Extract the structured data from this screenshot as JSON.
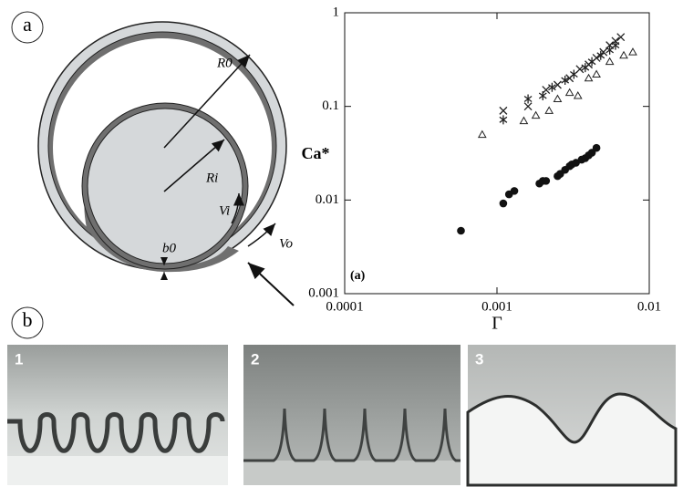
{
  "chart_data": {
    "type": "scatter",
    "xlabel": "Γ",
    "ylabel": "Ca*",
    "annotation": "(a)",
    "xscale": "log",
    "yscale": "log",
    "xlim": [
      0.0001,
      0.01
    ],
    "ylim": [
      0.001,
      1
    ],
    "xticks": [
      0.0001,
      0.001,
      0.01
    ],
    "yticks": [
      0.001,
      0.01,
      0.1,
      1
    ],
    "series": [
      {
        "marker": "cross",
        "color": "#222222",
        "x": [
          0.0011,
          0.0016,
          0.0021,
          0.0025,
          0.003,
          0.0035,
          0.004,
          0.0045,
          0.005,
          0.0055,
          0.006,
          0.0065
        ],
        "values": [
          0.09,
          0.1,
          0.15,
          0.17,
          0.2,
          0.25,
          0.28,
          0.33,
          0.38,
          0.45,
          0.5,
          0.55
        ]
      },
      {
        "marker": "star",
        "color": "#222222",
        "x": [
          0.0011,
          0.0016,
          0.002,
          0.0023,
          0.0028,
          0.0032,
          0.0038,
          0.0042,
          0.0048,
          0.0055,
          0.006
        ],
        "values": [
          0.072,
          0.12,
          0.13,
          0.16,
          0.19,
          0.22,
          0.26,
          0.3,
          0.35,
          0.4,
          0.45
        ]
      },
      {
        "marker": "triangle",
        "color": "#222222",
        "x": [
          0.0008,
          0.0015,
          0.0018,
          0.0022,
          0.0025,
          0.003,
          0.0034,
          0.004,
          0.0045,
          0.0055,
          0.0068,
          0.0078
        ],
        "values": [
          0.05,
          0.07,
          0.08,
          0.09,
          0.12,
          0.14,
          0.13,
          0.2,
          0.22,
          0.3,
          0.35,
          0.38
        ]
      },
      {
        "marker": "circle",
        "color": "#111111",
        "x": [
          0.00058,
          0.0011,
          0.0012,
          0.0013,
          0.0019,
          0.002,
          0.0021,
          0.0025,
          0.0026,
          0.0028,
          0.003,
          0.0031,
          0.0033,
          0.0036,
          0.0038,
          0.004,
          0.0042,
          0.0045
        ],
        "values": [
          0.0047,
          0.0092,
          0.0115,
          0.0125,
          0.015,
          0.016,
          0.016,
          0.018,
          0.019,
          0.021,
          0.023,
          0.024,
          0.025,
          0.027,
          0.028,
          0.03,
          0.032,
          0.036
        ]
      }
    ]
  },
  "figure": {
    "panel_labels": [
      "a",
      "b"
    ],
    "diagram_labels": {
      "outer_radius": "R0",
      "inner_radius": "Ri",
      "inner_velocity": "Vi",
      "outer_velocity": "Vo",
      "gap": "b0"
    },
    "photo_labels": [
      "1",
      "2",
      "3"
    ]
  }
}
